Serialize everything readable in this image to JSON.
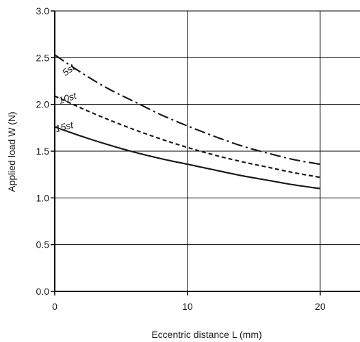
{
  "chart_data": {
    "type": "line",
    "xlabel": "Eccentric distance L (mm)",
    "ylabel": "Applied load W (N)",
    "xlim": [
      0,
      23
    ],
    "ylim": [
      0,
      3.0
    ],
    "x_ticks": [
      0,
      10,
      20
    ],
    "x_tick_labels": [
      "0",
      "10",
      "20"
    ],
    "y_ticks": [
      0,
      0.5,
      1.0,
      1.5,
      2.0,
      2.5,
      3.0
    ],
    "y_tick_labels": [
      "0.0",
      "0.5",
      "1.0",
      "1.5",
      "2.0",
      "2.5",
      "3.0"
    ],
    "grid": true,
    "series": [
      {
        "name": "5st",
        "style": "dash-dot",
        "x": [
          0,
          2,
          4,
          6,
          8,
          10,
          12,
          14,
          16,
          18,
          20
        ],
        "y": [
          2.53,
          2.34,
          2.17,
          2.03,
          1.89,
          1.77,
          1.66,
          1.56,
          1.48,
          1.41,
          1.36
        ]
      },
      {
        "name": "10st",
        "style": "dashed",
        "x": [
          0,
          2,
          4,
          6,
          8,
          10,
          12,
          14,
          16,
          18,
          20
        ],
        "y": [
          2.09,
          1.96,
          1.84,
          1.73,
          1.63,
          1.54,
          1.46,
          1.39,
          1.33,
          1.27,
          1.22
        ]
      },
      {
        "name": "15st",
        "style": "solid",
        "x": [
          0,
          2,
          4,
          6,
          8,
          10,
          12,
          14,
          16,
          18,
          20
        ],
        "y": [
          1.76,
          1.66,
          1.57,
          1.49,
          1.42,
          1.36,
          1.3,
          1.24,
          1.19,
          1.14,
          1.1
        ]
      }
    ]
  }
}
